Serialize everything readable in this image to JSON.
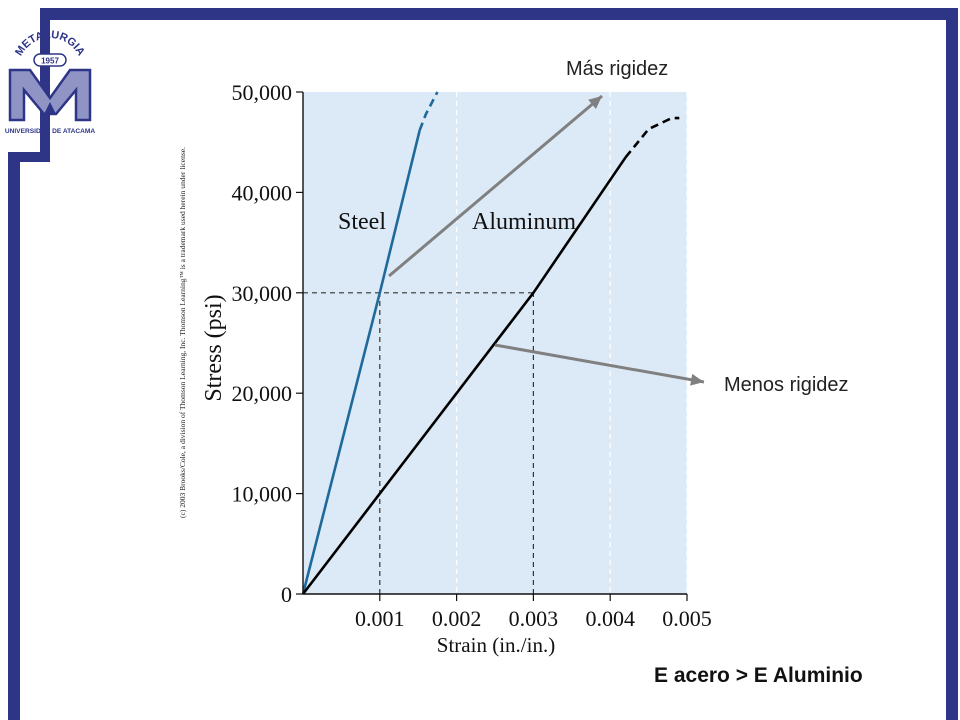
{
  "logo": {
    "arc_text": "METALURGIA",
    "year": "1957",
    "university": "UNIVERSIDAD DE ATACAMA",
    "color": "#2e3587"
  },
  "copyright": "(c) 2003 Brooks/Cole, a division of Thomson Learning, Inc. Thomson Learning™ is a trademark used herein under license.",
  "callouts": {
    "more_stiffness": "Más rigidez",
    "less_stiffness": "Menos rigidez"
  },
  "summary": "E acero > E Aluminio",
  "colors": {
    "plot_bg": "#dce9f6",
    "steel": "#1f6a9a",
    "aluminum": "#000000",
    "arrow": "#808080",
    "frame": "#2e3587"
  },
  "chart_data": {
    "type": "line",
    "xlabel": "Strain (in./in.)",
    "ylabel": "Stress (psi)",
    "xlim": [
      0,
      0.005
    ],
    "ylim": [
      0,
      50000
    ],
    "x_ticks": [
      0.001,
      0.002,
      0.003,
      0.004,
      0.005
    ],
    "x_tick_labels": [
      "0.001",
      "0.002",
      "0.003",
      "0.004",
      "0.005"
    ],
    "y_ticks": [
      0,
      10000,
      20000,
      30000,
      40000,
      50000
    ],
    "y_tick_labels": [
      "0",
      "10,000",
      "20,000",
      "30,000",
      "40,000",
      "50,000"
    ],
    "grid": "vertical dashed",
    "series": [
      {
        "name": "Steel",
        "solid": [
          [
            0,
            0
          ],
          [
            0.001,
            30000
          ],
          [
            0.00152,
            46200
          ]
        ],
        "dashed": [
          [
            0.00152,
            46200
          ],
          [
            0.0016,
            47800
          ],
          [
            0.00175,
            50000
          ]
        ]
      },
      {
        "name": "Aluminum",
        "solid": [
          [
            0,
            0
          ],
          [
            0.001,
            10000
          ],
          [
            0.003,
            30000
          ],
          [
            0.0042,
            43500
          ]
        ],
        "dashed": [
          [
            0.0042,
            43500
          ],
          [
            0.0045,
            46300
          ],
          [
            0.0048,
            47400
          ],
          [
            0.0049,
            47400
          ]
        ]
      }
    ],
    "reference_lines": [
      {
        "type": "horizontal",
        "y": 30000,
        "x_end": 0.003
      },
      {
        "type": "vertical",
        "x": 0.001,
        "y_end": 30000
      },
      {
        "type": "vertical",
        "x": 0.003,
        "y_end": 30000
      }
    ]
  }
}
